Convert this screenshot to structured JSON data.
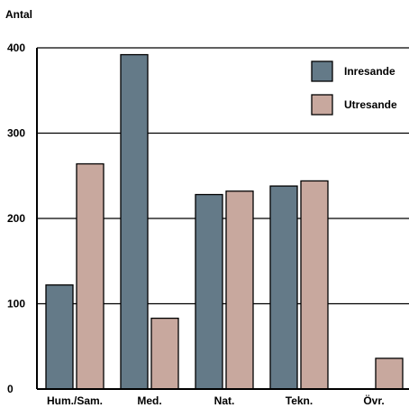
{
  "chart_data": {
    "type": "bar",
    "ylabel": "Antal",
    "categories": [
      "Hum./Sam.",
      "Med.",
      "Nat.",
      "Tekn.",
      "Övr."
    ],
    "series": [
      {
        "name": "Inresande",
        "color": "#647a88",
        "values": [
          122,
          392,
          228,
          238,
          0
        ]
      },
      {
        "name": "Utresande",
        "color": "#c8a89e",
        "values": [
          264,
          83,
          232,
          244,
          36
        ]
      }
    ],
    "ylim": [
      0,
      400
    ],
    "yticks": [
      "0",
      "100",
      "200",
      "300",
      "400"
    ],
    "grid": true,
    "legend": "top-right"
  }
}
